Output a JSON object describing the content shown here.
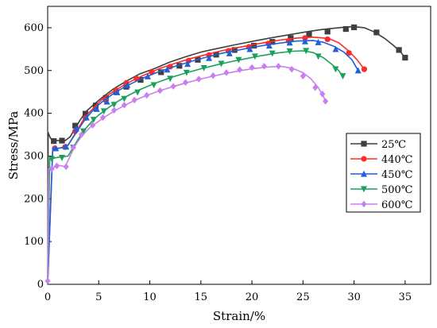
{
  "chart_data": {
    "type": "line",
    "xlabel": "Strain/%",
    "ylabel": "Stress/MPa",
    "xlim": [
      0,
      37.5
    ],
    "ylim": [
      0,
      650
    ],
    "xticks": [
      "0",
      "5",
      "10",
      "15",
      "20",
      "25",
      "30",
      "35"
    ],
    "yticks": [
      "0",
      "100",
      "200",
      "300",
      "400",
      "500",
      "600"
    ],
    "legend_position": "right",
    "series": [
      {
        "name": "25℃",
        "color": "#3f3f3f",
        "marker": "square",
        "x": [
          0,
          0.05,
          0.2,
          0.4,
          0.7,
          1.0,
          1.4,
          1.7,
          2.2,
          2.7,
          3.2,
          3.8,
          4.5,
          5.5,
          6.5,
          7.7,
          9.0,
          10.5,
          12.0,
          13.5,
          15.0,
          16.7,
          18.3,
          20.0,
          21.8,
          23.5,
          25.2,
          26.9,
          28.5,
          29.5,
          30.2,
          31.0,
          32.0,
          33.0,
          33.8,
          34.5,
          35.0,
          35.2
        ],
        "y": [
          0,
          355,
          345,
          338,
          337,
          336,
          336,
          336,
          345,
          365,
          385,
          405,
          420,
          440,
          458,
          475,
          492,
          505,
          520,
          532,
          543,
          552,
          560,
          568,
          576,
          583,
          590,
          596,
          600,
          602,
          602,
          600,
          590,
          575,
          560,
          545,
          530,
          528
        ],
        "marker_x": [
          0.6,
          1.4,
          2.7,
          3.7,
          4.7,
          5.7,
          6.7,
          7.7,
          9.1,
          11.1,
          12.9,
          14.7,
          16.5,
          18.3,
          20.2,
          22.0,
          23.8,
          25.6,
          27.4,
          29.2,
          30.0,
          32.2,
          34.4,
          35.0
        ],
        "marker_y": [
          335,
          336,
          371,
          399,
          418,
          436,
          450,
          462,
          478,
          496,
          511,
          525,
          537,
          548,
          558,
          567,
          576,
          584,
          591,
          597,
          601,
          589,
          548,
          530
        ]
      },
      {
        "name": "440℃",
        "color": "#ff2a2a",
        "marker": "circle",
        "x": [
          0,
          0.5,
          1.0,
          1.5,
          2.0,
          2.5,
          3.0,
          3.5,
          4.0,
          4.5,
          5.0,
          5.5,
          6.5,
          7.5,
          8.5,
          9.5,
          11.0,
          12.5,
          14.0,
          15.5,
          17.0,
          18.5,
          20.0,
          21.5,
          23.0,
          24.5,
          26.0,
          27.5,
          28.5,
          29.5,
          30.3,
          31.0
        ],
        "y": [
          0,
          318,
          318,
          320,
          325,
          345,
          365,
          385,
          400,
          412,
          425,
          436,
          452,
          466,
          479,
          490,
          505,
          517,
          528,
          537,
          546,
          553,
          560,
          566,
          572,
          576,
          578,
          575,
          565,
          545,
          525,
          503
        ],
        "marker_x": [
          0.7,
          1.7,
          2.7,
          3.7,
          4.7,
          5.7,
          6.7,
          7.7,
          8.7,
          10.2,
          12.0,
          13.8,
          15.8,
          17.7,
          19.7,
          21.6,
          23.6,
          25.2,
          27.4,
          29.5,
          31.0
        ],
        "marker_y": [
          318,
          321,
          358,
          389,
          410,
          430,
          454,
          471,
          481,
          496,
          509,
          523,
          536,
          546,
          555,
          563,
          569,
          576,
          573,
          541,
          503
        ]
      },
      {
        "name": "450℃",
        "color": "#1f5fd8",
        "marker": "triangle-up",
        "x": [
          0,
          0.5,
          1.0,
          1.5,
          2.0,
          2.5,
          3.0,
          3.5,
          4.0,
          4.5,
          5.0,
          5.5,
          6.5,
          7.5,
          8.5,
          9.5,
          11.0,
          12.5,
          14.0,
          15.5,
          17.0,
          18.5,
          20.0,
          21.5,
          23.0,
          24.5,
          26.0,
          27.0,
          28.0,
          29.0,
          29.8,
          30.4
        ],
        "y": [
          0,
          318,
          318,
          320,
          326,
          344,
          362,
          380,
          395,
          408,
          420,
          430,
          447,
          461,
          473,
          484,
          498,
          510,
          521,
          531,
          540,
          547,
          554,
          560,
          565,
          569,
          570,
          566,
          557,
          543,
          525,
          500
        ],
        "marker_x": [
          0.8,
          1.8,
          2.8,
          3.8,
          4.8,
          5.8,
          6.8,
          7.8,
          9.8,
          11.7,
          13.7,
          15.8,
          17.8,
          19.8,
          21.7,
          23.7,
          25.2,
          26.5,
          28.2,
          30.4
        ],
        "marker_y": [
          318,
          322,
          364,
          390,
          410,
          427,
          449,
          466,
          486,
          502,
          515,
          529,
          540,
          550,
          558,
          565,
          568,
          566,
          550,
          500
        ]
      },
      {
        "name": "500℃",
        "color": "#1aa05a",
        "marker": "triangle-down",
        "x": [
          0,
          0.2,
          0.6,
          1.0,
          1.5,
          2.0,
          2.5,
          3.0,
          3.5,
          4.0,
          4.5,
          5.0,
          6.0,
          7.0,
          8.0,
          9.0,
          10.5,
          12.0,
          13.5,
          15.0,
          16.5,
          18.0,
          19.5,
          21.0,
          22.5,
          24.0,
          25.0,
          26.0,
          27.0,
          27.8,
          28.5,
          28.9
        ],
        "y": [
          0,
          295,
          295,
          297,
          298,
          300,
          320,
          340,
          358,
          372,
          385,
          396,
          414,
          430,
          443,
          455,
          470,
          483,
          494,
          504,
          513,
          521,
          528,
          535,
          541,
          545,
          546,
          542,
          530,
          515,
          500,
          487
        ],
        "marker_x": [
          0.4,
          1.4,
          2.5,
          3.5,
          4.5,
          5.5,
          6.5,
          7.5,
          8.8,
          10.4,
          12.0,
          13.6,
          15.3,
          17.0,
          18.7,
          20.3,
          22.0,
          23.7,
          25.3,
          26.5,
          28.2,
          28.9
        ],
        "marker_y": [
          293,
          296,
          320,
          358,
          385,
          405,
          420,
          434,
          449,
          466,
          481,
          495,
          506,
          516,
          525,
          533,
          540,
          545,
          546,
          533,
          503,
          487
        ]
      },
      {
        "name": "600℃",
        "color": "#c97ff0",
        "marker": "diamond",
        "x": [
          0,
          0.1,
          0.4,
          0.8,
          1.2,
          1.7,
          2.2,
          2.7,
          3.2,
          3.7,
          4.2,
          4.8,
          5.5,
          6.5,
          7.5,
          8.5,
          9.5,
          11.0,
          12.5,
          14.0,
          15.5,
          17.0,
          18.5,
          20.0,
          21.5,
          22.8,
          24.0,
          25.0,
          25.8,
          26.5,
          27.0,
          27.2
        ],
        "y": [
          8,
          270,
          272,
          275,
          278,
          275,
          300,
          325,
          342,
          356,
          368,
          378,
          390,
          405,
          418,
          430,
          440,
          453,
          464,
          474,
          483,
          491,
          498,
          504,
          508,
          510,
          505,
          495,
          480,
          460,
          440,
          428
        ],
        "marker_x": [
          0.0,
          0.4,
          0.9,
          1.8,
          2.5,
          3.3,
          4.4,
          5.4,
          6.5,
          7.5,
          8.5,
          9.7,
          11.0,
          12.3,
          13.5,
          14.8,
          16.2,
          17.5,
          18.8,
          20.0,
          21.2,
          22.6,
          23.9,
          25.0,
          26.2,
          26.9,
          27.2
        ],
        "marker_y": [
          8,
          270,
          277,
          275,
          320,
          350,
          372,
          390,
          407,
          419,
          431,
          442,
          453,
          463,
          472,
          480,
          488,
          495,
          502,
          507,
          510,
          510,
          503,
          487,
          460,
          445,
          428
        ]
      }
    ]
  }
}
